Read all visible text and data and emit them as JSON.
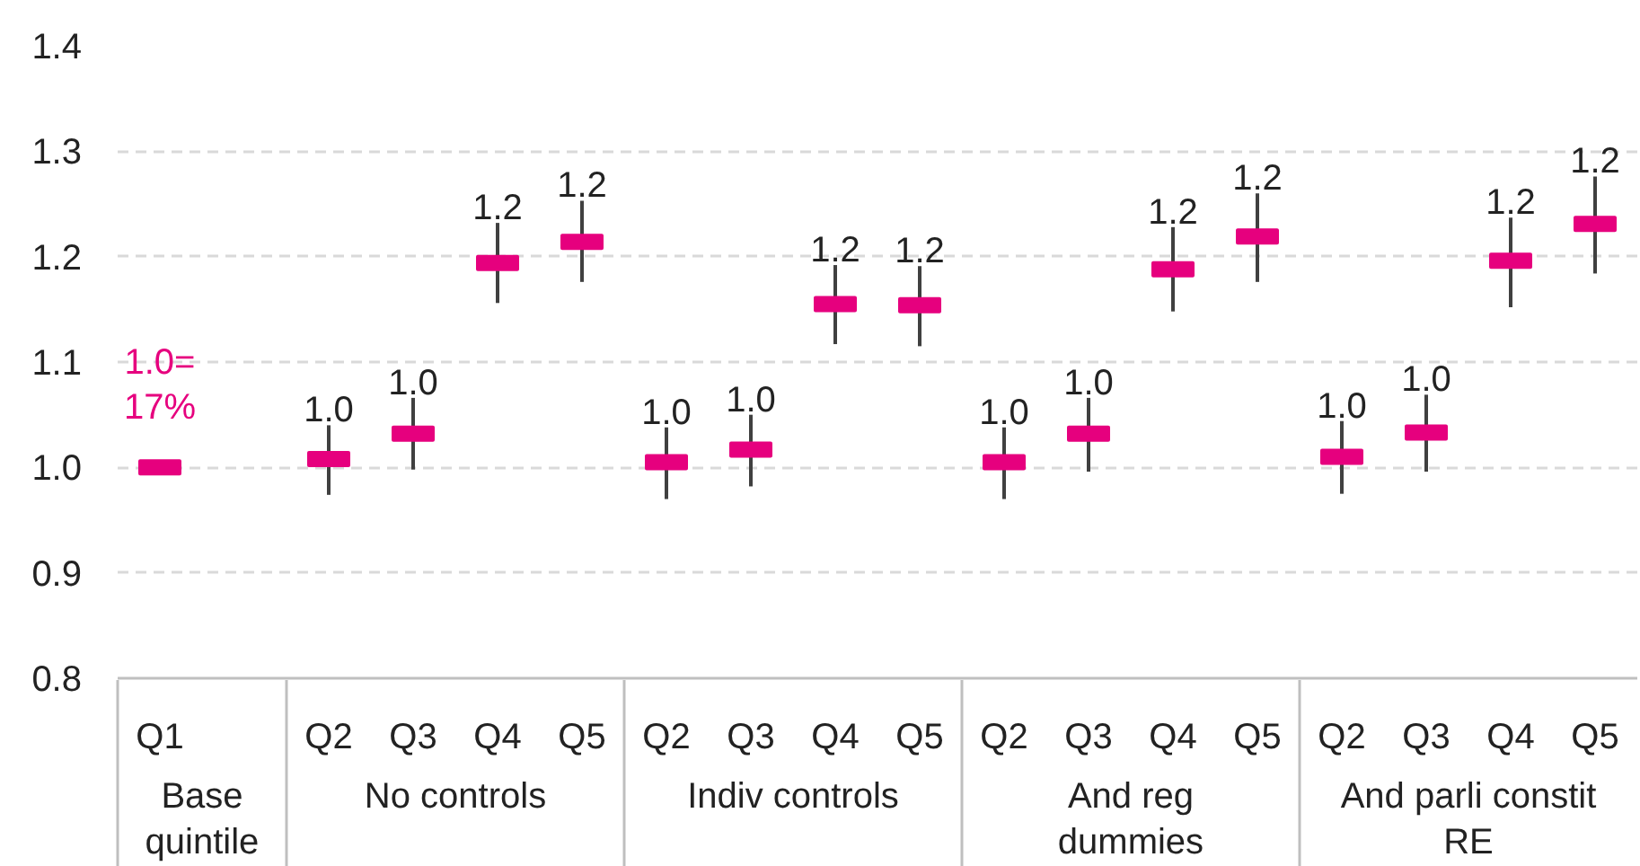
{
  "chart_data": {
    "type": "scatter",
    "categories": [
      "Q1",
      null,
      "Q2",
      "Q3",
      "Q4",
      "Q5",
      "Q2",
      "Q3",
      "Q4",
      "Q5",
      "Q2",
      "Q3",
      "Q4",
      "Q5",
      "Q2",
      "Q3",
      "Q4",
      "Q5"
    ],
    "values": [
      1.0,
      null,
      1.008,
      1.032,
      1.194,
      1.214,
      1.005,
      1.017,
      1.155,
      1.154,
      1.005,
      1.032,
      1.188,
      1.219,
      1.01,
      1.033,
      1.196,
      1.231
    ],
    "errors": [
      null,
      null,
      [
        0.974,
        1.04
      ],
      [
        0.998,
        1.066
      ],
      [
        1.156,
        1.232
      ],
      [
        1.176,
        1.253
      ],
      [
        0.97,
        1.038
      ],
      [
        0.982,
        1.05
      ],
      [
        1.117,
        1.192
      ],
      [
        1.115,
        1.191
      ],
      [
        0.97,
        1.038
      ],
      [
        0.996,
        1.066
      ],
      [
        1.148,
        1.228
      ],
      [
        1.176,
        1.26
      ],
      [
        0.975,
        1.044
      ],
      [
        0.996,
        1.069
      ],
      [
        1.152,
        1.237
      ],
      [
        1.184,
        1.276
      ]
    ],
    "value_labels": [
      null,
      null,
      "1.0",
      "1.0",
      "1.2",
      "1.2",
      "1.0",
      "1.0",
      "1.2",
      "1.2",
      "1.0",
      "1.0",
      "1.2",
      "1.2",
      "1.0",
      "1.0",
      "1.2",
      "1.2"
    ],
    "color": "#e6007e",
    "ylim": [
      0.8,
      1.4
    ],
    "yticks": [
      0.8,
      0.9,
      {
        "value": 1,
        "label": "1.0"
      },
      1.1,
      1.2,
      1.3,
      1.4
    ],
    "grid": "y",
    "annotations": [
      {
        "text": "1.0=\n17%",
        "x": "Q1",
        "y": 1.0
      },
      "Base\nquintile",
      "No controls",
      "Indiv controls",
      "And reg\ndummies",
      "And parli constit\nRE"
    ]
  }
}
